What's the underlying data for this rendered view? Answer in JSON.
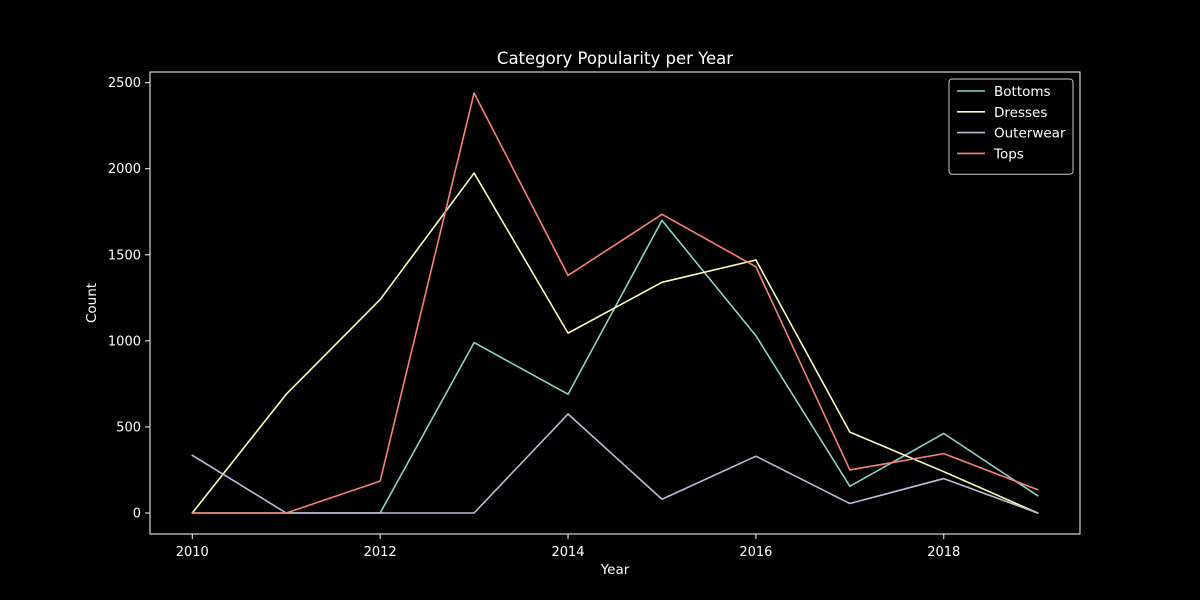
{
  "chart_data": {
    "type": "line",
    "title": "Category Popularity per Year",
    "xlabel": "Year",
    "ylabel": "Count",
    "x": [
      2010,
      2011,
      2012,
      2013,
      2014,
      2015,
      2016,
      2017,
      2018,
      2019
    ],
    "xlim": [
      2009.55,
      2019.45
    ],
    "ylim": [
      -122,
      2562
    ],
    "x_ticks": [
      "2010",
      "2012",
      "2014",
      "2016",
      "2018"
    ],
    "y_ticks": [
      "0",
      "500",
      "1000",
      "1500",
      "2000",
      "2500"
    ],
    "grid": false,
    "legend_position": "top-right",
    "background": "#000000",
    "series": [
      {
        "name": "Bottoms",
        "color": "#8dd3c7",
        "values": [
          0,
          0,
          0,
          990,
          690,
          1700,
          1030,
          155,
          462,
          100
        ]
      },
      {
        "name": "Dresses",
        "color": "#feffb3",
        "values": [
          0,
          690,
          1240,
          1975,
          1045,
          1340,
          1470,
          470,
          240,
          0
        ]
      },
      {
        "name": "Outerwear",
        "color": "#bfbbd9",
        "values": [
          335,
          0,
          0,
          0,
          575,
          80,
          330,
          55,
          200,
          0
        ]
      },
      {
        "name": "Tops",
        "color": "#fa8174",
        "values": [
          0,
          0,
          185,
          2440,
          1380,
          1735,
          1430,
          250,
          345,
          135
        ]
      }
    ]
  }
}
